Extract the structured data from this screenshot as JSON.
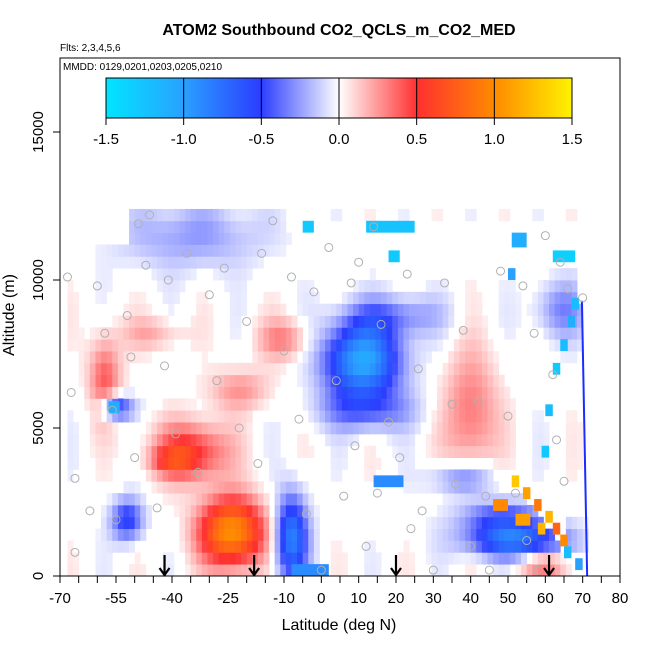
{
  "chart_data": {
    "type": "heatmap",
    "title": "ATOM2 Southbound CO2_QCLS_m_CO2_MED",
    "flights_label": "Flts: 2,3,4,5,6",
    "dates_label": "MMDD: 0129,0201,0203,0205,0210",
    "xlabel": "Latitude (deg N)",
    "ylabel": "Altitude (m)",
    "xlim": [
      -70,
      80
    ],
    "ylim": [
      0,
      17500
    ],
    "x_ticks_labeled": [
      "-70",
      "-55",
      "-40",
      "-25",
      "-10",
      "0",
      "10",
      "20",
      "30",
      "40",
      "50",
      "60",
      "70",
      "80"
    ],
    "x_tick_values_labeled": [
      -70,
      -55,
      -40,
      -25,
      -10,
      0,
      10,
      20,
      30,
      40,
      50,
      60,
      70,
      80
    ],
    "x_minor_ticks": [
      -65,
      -60,
      -50,
      -45,
      -35,
      -30,
      -20,
      -15,
      -5,
      5,
      15,
      25,
      35,
      45,
      55,
      65,
      75
    ],
    "y_ticks": [
      "0",
      "5000",
      "10000",
      "15000"
    ],
    "y_tick_values": [
      0,
      5000,
      10000,
      15000
    ],
    "colorbar": {
      "range": [
        -1.5,
        1.5
      ],
      "ticks": [
        "-1.5",
        "-1.0",
        "-0.5",
        "0.0",
        "0.5",
        "1.0",
        "1.5"
      ],
      "tick_values": [
        -1.5,
        -1.0,
        -0.5,
        0.0,
        0.5,
        1.0,
        1.5
      ]
    },
    "arrows_latitude": [
      -42,
      -18,
      20,
      61
    ],
    "blobs": [
      {
        "lat": -24,
        "alt": 1500,
        "slat": 6,
        "salt": 800,
        "val": 1.05
      },
      {
        "lat": -35,
        "alt": 4200,
        "slat": 7,
        "salt": 700,
        "val": 0.55
      },
      {
        "lat": -58,
        "alt": 6700,
        "slat": 3,
        "salt": 1000,
        "val": 0.4
      },
      {
        "lat": -22,
        "alt": 6300,
        "slat": 6,
        "salt": 500,
        "val": 0.25
      },
      {
        "lat": -10,
        "alt": 8000,
        "slat": 5,
        "salt": 500,
        "val": 0.3
      },
      {
        "lat": -45,
        "alt": 8200,
        "slat": 6,
        "salt": 400,
        "val": 0.2
      },
      {
        "lat": 40,
        "alt": 5500,
        "slat": 5,
        "salt": 1500,
        "val": 0.35
      },
      {
        "lat": 11,
        "alt": 7300,
        "slat": 7,
        "salt": 900,
        "val": -1.05
      },
      {
        "lat": 12,
        "alt": 5600,
        "slat": 9,
        "salt": 500,
        "val": -0.35
      },
      {
        "lat": 20,
        "alt": 8800,
        "slat": 9,
        "salt": 500,
        "val": -0.3
      },
      {
        "lat": -35,
        "alt": 11500,
        "slat": 14,
        "salt": 800,
        "val": -0.25
      },
      {
        "lat": -8,
        "alt": 1300,
        "slat": 3,
        "salt": 1000,
        "val": -0.85
      },
      {
        "lat": -52,
        "alt": 1900,
        "slat": 3,
        "salt": 500,
        "val": -0.55
      },
      {
        "lat": 52,
        "alt": 1200,
        "slat": 9,
        "salt": 400,
        "val": -0.8
      },
      {
        "lat": 48,
        "alt": 2000,
        "slat": 8,
        "salt": 400,
        "val": -0.45
      },
      {
        "lat": 38,
        "alt": 3300,
        "slat": 6,
        "salt": 400,
        "val": -0.35
      },
      {
        "lat": -55,
        "alt": 5700,
        "slat": 3,
        "salt": 300,
        "val": -0.6
      },
      {
        "lat": -40,
        "alt": 3900,
        "slat": 4,
        "salt": 300,
        "val": 0.3
      },
      {
        "lat": 60,
        "alt": 400,
        "slat": 5,
        "salt": 300,
        "val": 0.35
      },
      {
        "lat": 64,
        "alt": 9000,
        "slat": 5,
        "salt": 700,
        "val": -0.3
      }
    ],
    "strips": [
      {
        "lat": [
          -5,
          -2
        ],
        "alt": [
          11600,
          12000
        ],
        "val": -1.3
      },
      {
        "lat": [
          12,
          25
        ],
        "alt": [
          11600,
          12000
        ],
        "val": -1.25
      },
      {
        "lat": [
          18,
          21
        ],
        "alt": [
          10600,
          11000
        ],
        "val": -1.3
      },
      {
        "lat": [
          62,
          68
        ],
        "alt": [
          10600,
          11000
        ],
        "val": -1.35
      },
      {
        "lat": [
          51,
          55
        ],
        "alt": [
          11100,
          11600
        ],
        "val": -1.1
      },
      {
        "lat": [
          50,
          52
        ],
        "alt": [
          10000,
          10400
        ],
        "val": -1.0
      },
      {
        "lat": [
          -57,
          -54
        ],
        "alt": [
          5500,
          5900
        ],
        "val": -1.1
      },
      {
        "lat": [
          14,
          22
        ],
        "alt": [
          3000,
          3400
        ],
        "val": -0.9
      },
      {
        "lat": [
          -8,
          2
        ],
        "alt": [
          0,
          400
        ],
        "val": -0.9
      },
      {
        "lat": [
          46,
          50
        ],
        "alt": [
          2200,
          2600
        ],
        "val": 1.0
      },
      {
        "lat": [
          52,
          56
        ],
        "alt": [
          1700,
          2100
        ],
        "val": 1.1
      },
      {
        "lat": [
          58,
          60
        ],
        "alt": [
          1400,
          1800
        ],
        "val": 1.2
      }
    ],
    "stair_segments": [
      {
        "lat": [
          51,
          53
        ],
        "alt": [
          3000,
          3400
        ],
        "val": 1.3
      },
      {
        "lat": [
          54,
          56
        ],
        "alt": [
          2600,
          3000
        ],
        "val": 1.1
      },
      {
        "lat": [
          57,
          59
        ],
        "alt": [
          2200,
          2600
        ],
        "val": 0.9
      },
      {
        "lat": [
          60,
          62
        ],
        "alt": [
          1800,
          2200
        ],
        "val": 1.2
      },
      {
        "lat": [
          62,
          64
        ],
        "alt": [
          1400,
          1800
        ],
        "val": 0.8
      },
      {
        "lat": [
          64,
          66
        ],
        "alt": [
          1000,
          1400
        ],
        "val": 1.0
      },
      {
        "lat": [
          65,
          67
        ],
        "alt": [
          600,
          1000
        ],
        "val": -1.2
      },
      {
        "lat": [
          68,
          70
        ],
        "alt": [
          200,
          600
        ],
        "val": -1.0
      },
      {
        "lat": [
          59,
          61
        ],
        "alt": [
          4000,
          4400
        ],
        "val": -1.3
      },
      {
        "lat": [
          60,
          62
        ],
        "alt": [
          5400,
          5800
        ],
        "val": -1.2
      },
      {
        "lat": [
          62,
          64
        ],
        "alt": [
          6800,
          7200
        ],
        "val": -1.3
      },
      {
        "lat": [
          64,
          66
        ],
        "alt": [
          7600,
          8000
        ],
        "val": -1.2
      },
      {
        "lat": [
          66,
          68
        ],
        "alt": [
          8400,
          8800
        ],
        "val": -1.1
      },
      {
        "lat": [
          67,
          69
        ],
        "alt": [
          9000,
          9400
        ],
        "val": -1.2
      }
    ],
    "sample_points": [
      [
        -68,
        10100
      ],
      [
        -67,
        6200
      ],
      [
        -66,
        3300
      ],
      [
        -66,
        800
      ],
      [
        -62,
        2200
      ],
      [
        -60,
        9800
      ],
      [
        -58,
        8200
      ],
      [
        -56,
        5600
      ],
      [
        -55,
        1900
      ],
      [
        -52,
        8800
      ],
      [
        -51,
        7400
      ],
      [
        -50,
        4000
      ],
      [
        -49,
        11900
      ],
      [
        -46,
        12200
      ],
      [
        -47,
        10500
      ],
      [
        -44,
        2300
      ],
      [
        -42,
        7100
      ],
      [
        -41,
        10000
      ],
      [
        -39,
        4800
      ],
      [
        -36,
        10900
      ],
      [
        -33,
        3500
      ],
      [
        -30,
        9500
      ],
      [
        -28,
        6600
      ],
      [
        -26,
        10400
      ],
      [
        -22,
        5000
      ],
      [
        -20,
        8600
      ],
      [
        -17,
        3800
      ],
      [
        -16,
        10900
      ],
      [
        -13,
        12000
      ],
      [
        -10,
        7600
      ],
      [
        -8,
        10100
      ],
      [
        -6,
        5300
      ],
      [
        -4,
        2100
      ],
      [
        -2,
        9600
      ],
      [
        0,
        200
      ],
      [
        2,
        11100
      ],
      [
        4,
        6600
      ],
      [
        6,
        2700
      ],
      [
        8,
        9900
      ],
      [
        9,
        4400
      ],
      [
        10,
        10600
      ],
      [
        12,
        1000
      ],
      [
        14,
        11800
      ],
      [
        15,
        2800
      ],
      [
        16,
        8500
      ],
      [
        18,
        5200
      ],
      [
        21,
        4000
      ],
      [
        23,
        10200
      ],
      [
        24,
        1600
      ],
      [
        26,
        7000
      ],
      [
        27,
        2200
      ],
      [
        30,
        200
      ],
      [
        33,
        9900
      ],
      [
        35,
        5800
      ],
      [
        36,
        3100
      ],
      [
        38,
        8300
      ],
      [
        40,
        1000
      ],
      [
        42,
        5900
      ],
      [
        44,
        2700
      ],
      [
        45,
        200
      ],
      [
        48,
        10300
      ],
      [
        50,
        5400
      ],
      [
        52,
        2800
      ],
      [
        54,
        9800
      ],
      [
        55,
        1200
      ],
      [
        57,
        8200
      ],
      [
        58,
        200
      ],
      [
        60,
        11500
      ],
      [
        62,
        6800
      ],
      [
        63,
        4600
      ],
      [
        64,
        10600
      ],
      [
        65,
        3200
      ],
      [
        66,
        9700
      ],
      [
        70,
        9400
      ]
    ]
  }
}
